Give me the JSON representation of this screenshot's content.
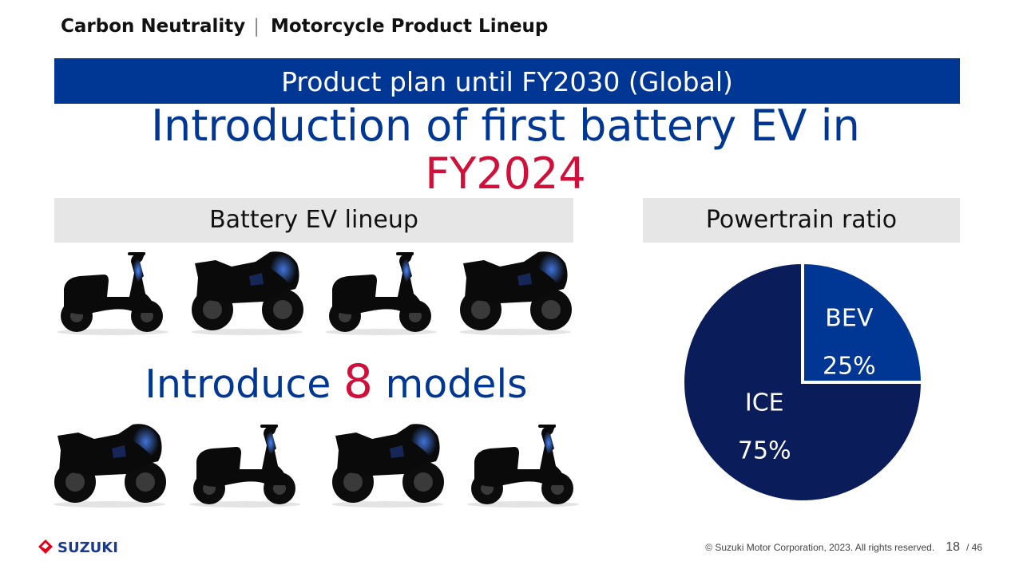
{
  "header": {
    "section": "Carbon Neutrality",
    "separator": "|",
    "title": "Motorcycle Product Lineup"
  },
  "banner": {
    "text": "Product plan until FY2030 (Global)"
  },
  "headline": {
    "line1": "Introduction of first battery EV in",
    "line2": "FY2024"
  },
  "lineup": {
    "heading": "Battery EV lineup",
    "introduce_prefix": "Introduce",
    "count": "8",
    "introduce_suffix": "models",
    "bikes": [
      "scooter",
      "sport",
      "scooter",
      "sport",
      "sport",
      "scooter",
      "sport",
      "scooter"
    ]
  },
  "powertrain": {
    "heading": "Powertrain ratio"
  },
  "chart_data": {
    "type": "pie",
    "title": "Powertrain ratio",
    "labels": [
      "BEV",
      "ICE"
    ],
    "values": [
      25,
      75
    ],
    "value_labels": [
      "25%",
      "75%"
    ],
    "colors": [
      "#003694",
      "#0a1d5a"
    ]
  },
  "footer": {
    "brand": "SUZUKI",
    "copyright": "© Suzuki Motor Corporation, 2023. All rights reserved.",
    "page": "18",
    "total": "/ 46"
  }
}
